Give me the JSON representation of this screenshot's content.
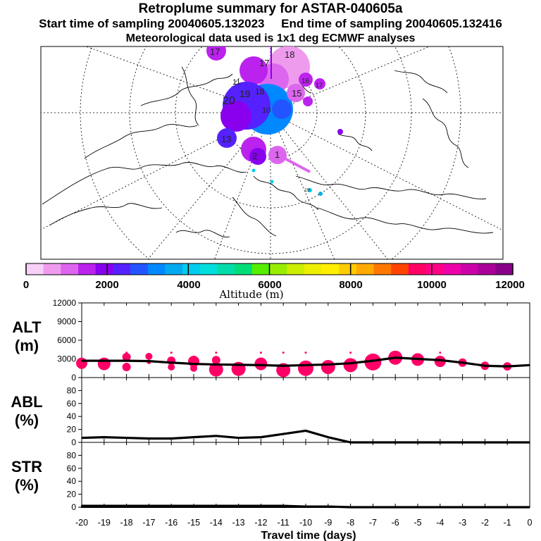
{
  "header": {
    "title": "Retroplume summary for ASTAR-040605a",
    "start_label": "Start time of sampling 20040605.132023",
    "end_label": "End time of sampling 20040605.132416",
    "met_label": "Meteorological data used is 1x1 deg ECMWF analyses"
  },
  "colorbar": {
    "label": "Altitude (m)",
    "ticks": [
      "0",
      "2000",
      "4000",
      "6000",
      "8000",
      "10000",
      "12000"
    ],
    "colors": [
      "#f7d0f7",
      "#ee9bee",
      "#dd66ee",
      "#bb22ee",
      "#8800ee",
      "#5522ff",
      "#2255ff",
      "#0088ff",
      "#00aaee",
      "#00ccee",
      "#00dddd",
      "#00ddaa",
      "#00dd77",
      "#55ee00",
      "#99ee00",
      "#ccee00",
      "#eeee00",
      "#ffee00",
      "#ffcc00",
      "#ffaa00",
      "#ff7700",
      "#ff4400",
      "#ff0066",
      "#ff0088",
      "#ee00aa",
      "#cc00aa",
      "#aa0099",
      "#880088"
    ]
  },
  "map": {
    "plume_labels": [
      "17",
      "18",
      "17",
      "16",
      "15",
      "17",
      "20",
      "19",
      "18",
      "13",
      "2",
      "1",
      "11",
      "10",
      "19"
    ]
  },
  "chart_data": [
    {
      "type": "line",
      "panel": "ALT",
      "ylabel": "ALT",
      "yunit": "(m)",
      "ylim": [
        0,
        12000
      ],
      "yticks": [
        "0",
        "3000",
        "6000",
        "9000",
        "12000"
      ],
      "x": [
        -20,
        -19,
        -18,
        -17,
        -16,
        -15,
        -14,
        -13,
        -12,
        -11,
        -10,
        -9,
        -8,
        -7,
        -6,
        -5,
        -4,
        -3,
        -2,
        -1,
        0
      ],
      "values": [
        2700,
        2700,
        2700,
        2650,
        2400,
        2200,
        2100,
        2050,
        2000,
        1900,
        2000,
        2100,
        2300,
        2700,
        3200,
        3000,
        2800,
        2400,
        1900,
        1800,
        2000
      ],
      "cluster_dots": [
        {
          "x": -20,
          "y": 2300,
          "r": 8
        },
        {
          "x": -19,
          "y": 2200,
          "r": 9
        },
        {
          "x": -18,
          "y": 3300,
          "r": 6
        },
        {
          "x": -18,
          "y": 1700,
          "r": 6
        },
        {
          "x": -17,
          "y": 3400,
          "r": 5
        },
        {
          "x": -17,
          "y": 2500,
          "r": 3
        },
        {
          "x": -16,
          "y": 2700,
          "r": 6
        },
        {
          "x": -16,
          "y": 1700,
          "r": 5
        },
        {
          "x": -15,
          "y": 2600,
          "r": 8
        },
        {
          "x": -15,
          "y": 1500,
          "r": 5
        },
        {
          "x": -14,
          "y": 2800,
          "r": 6
        },
        {
          "x": -14,
          "y": 1300,
          "r": 10
        },
        {
          "x": -13,
          "y": 1400,
          "r": 10
        },
        {
          "x": -12,
          "y": 2200,
          "r": 9
        },
        {
          "x": -11,
          "y": 1200,
          "r": 10
        },
        {
          "x": -10,
          "y": 1500,
          "r": 11
        },
        {
          "x": -9,
          "y": 1700,
          "r": 10
        },
        {
          "x": -8,
          "y": 2000,
          "r": 10
        },
        {
          "x": -7,
          "y": 2500,
          "r": 12
        },
        {
          "x": -6,
          "y": 3200,
          "r": 10
        },
        {
          "x": -5,
          "y": 2900,
          "r": 9
        },
        {
          "x": -4,
          "y": 2600,
          "r": 8
        },
        {
          "x": -3,
          "y": 2400,
          "r": 6
        },
        {
          "x": -2,
          "y": 1900,
          "r": 6
        },
        {
          "x": -1,
          "y": 1800,
          "r": 6
        }
      ]
    },
    {
      "type": "line",
      "panel": "ABL",
      "ylabel": "ABL",
      "yunit": "(%)",
      "ylim": [
        0,
        100
      ],
      "yticks": [
        "0",
        "20",
        "40",
        "60",
        "80"
      ],
      "x": [
        -20,
        -19,
        -18,
        -17,
        -16,
        -15,
        -14,
        -13,
        -12,
        -11,
        -10,
        -9,
        -8,
        -7,
        -6,
        -5,
        -4,
        -3,
        -2,
        -1,
        0
      ],
      "values": [
        7,
        8,
        7,
        6,
        6,
        8,
        10,
        7,
        8,
        13,
        18,
        8,
        0,
        0,
        0,
        0,
        0,
        0,
        0,
        0,
        0
      ]
    },
    {
      "type": "area",
      "panel": "STR",
      "ylabel": "STR",
      "yunit": "(%)",
      "ylim": [
        0,
        100
      ],
      "yticks": [
        "0",
        "20",
        "40",
        "60",
        "80"
      ],
      "x": [
        -20,
        -19,
        -18,
        -17,
        -16,
        -15,
        -14,
        -13,
        -12,
        -11,
        -10,
        -9,
        -8,
        -7,
        -6,
        -5,
        -4,
        -3,
        -2,
        -1,
        0
      ],
      "values": [
        2,
        2,
        2,
        2,
        2,
        2,
        2,
        2,
        2,
        2,
        1,
        1,
        0,
        0,
        0,
        0,
        0,
        0,
        0,
        0,
        0
      ],
      "xlabel": "Travel time (days)",
      "xticks": [
        "-20",
        "-19",
        "-18",
        "-17",
        "-16",
        "-15",
        "-14",
        "-13",
        "-12",
        "-11",
        "-10",
        "-9",
        "-8",
        "-7",
        "-6",
        "-5",
        "-4",
        "-3",
        "-2",
        "-1",
        "0"
      ]
    }
  ]
}
